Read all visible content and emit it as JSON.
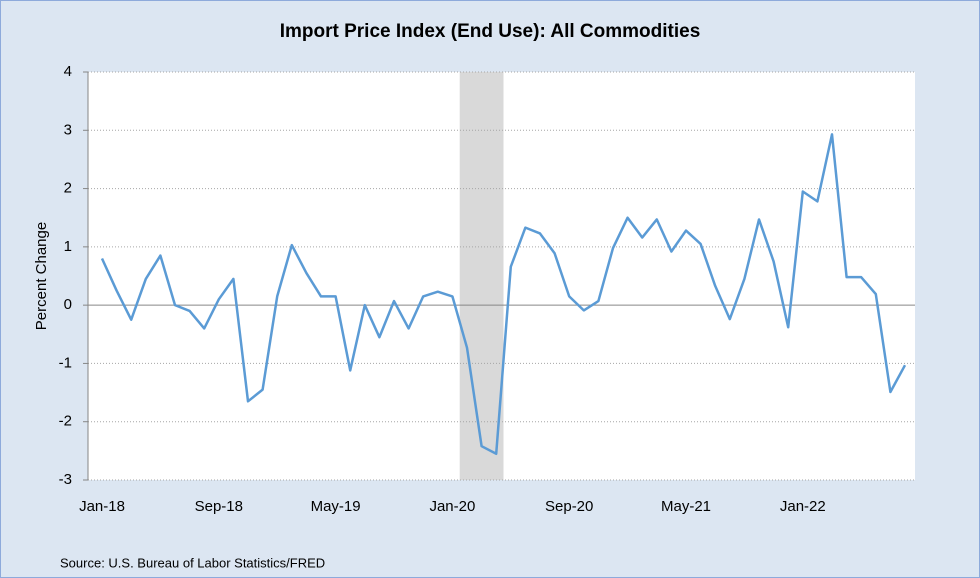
{
  "chart_data": {
    "type": "line",
    "title": "Import Price Index (End Use): All Commodities",
    "y_label": "Percent Change",
    "source": "Source: U.S. Bureau of Labor Statistics/FRED",
    "categories": [
      "Jan-18",
      null,
      null,
      null,
      null,
      null,
      null,
      null,
      "Sep-18",
      null,
      null,
      null,
      null,
      null,
      null,
      null,
      "May-19",
      null,
      null,
      null,
      null,
      null,
      null,
      null,
      "Jan-20",
      null,
      null,
      null,
      null,
      null,
      null,
      null,
      "Sep-20",
      null,
      null,
      null,
      null,
      null,
      null,
      null,
      "May-21",
      null,
      null,
      null,
      null,
      null,
      null,
      null,
      "Jan-22",
      null,
      null,
      null,
      null,
      null,
      null,
      null
    ],
    "series": [
      {
        "name": "All Commodities",
        "color": "#5b9bd5",
        "values": [
          0.8,
          0.25,
          -0.25,
          0.45,
          0.85,
          0.0,
          -0.1,
          -0.4,
          0.1,
          0.45,
          -1.65,
          -1.45,
          0.15,
          1.03,
          0.55,
          0.15,
          0.15,
          -1.12,
          0.0,
          -0.55,
          0.07,
          -0.4,
          0.15,
          0.23,
          0.15,
          -0.73,
          -2.42,
          -2.55,
          0.66,
          1.33,
          1.23,
          0.89,
          0.15,
          -0.09,
          0.07,
          0.98,
          1.5,
          1.16,
          1.47,
          0.92,
          1.28,
          1.05,
          0.33,
          -0.24,
          0.45,
          1.47,
          0.75,
          -0.38,
          1.95,
          1.78,
          2.93,
          0.48,
          0.48,
          0.19,
          -1.49,
          -1.03
        ]
      }
    ],
    "shading": {
      "from": 25,
      "to": 28,
      "color": "#d9d9d9"
    },
    "ylim": [
      -3,
      4
    ],
    "yticks": [
      -3,
      -2,
      -1,
      0,
      1,
      2,
      3,
      4
    ],
    "grid": true
  }
}
